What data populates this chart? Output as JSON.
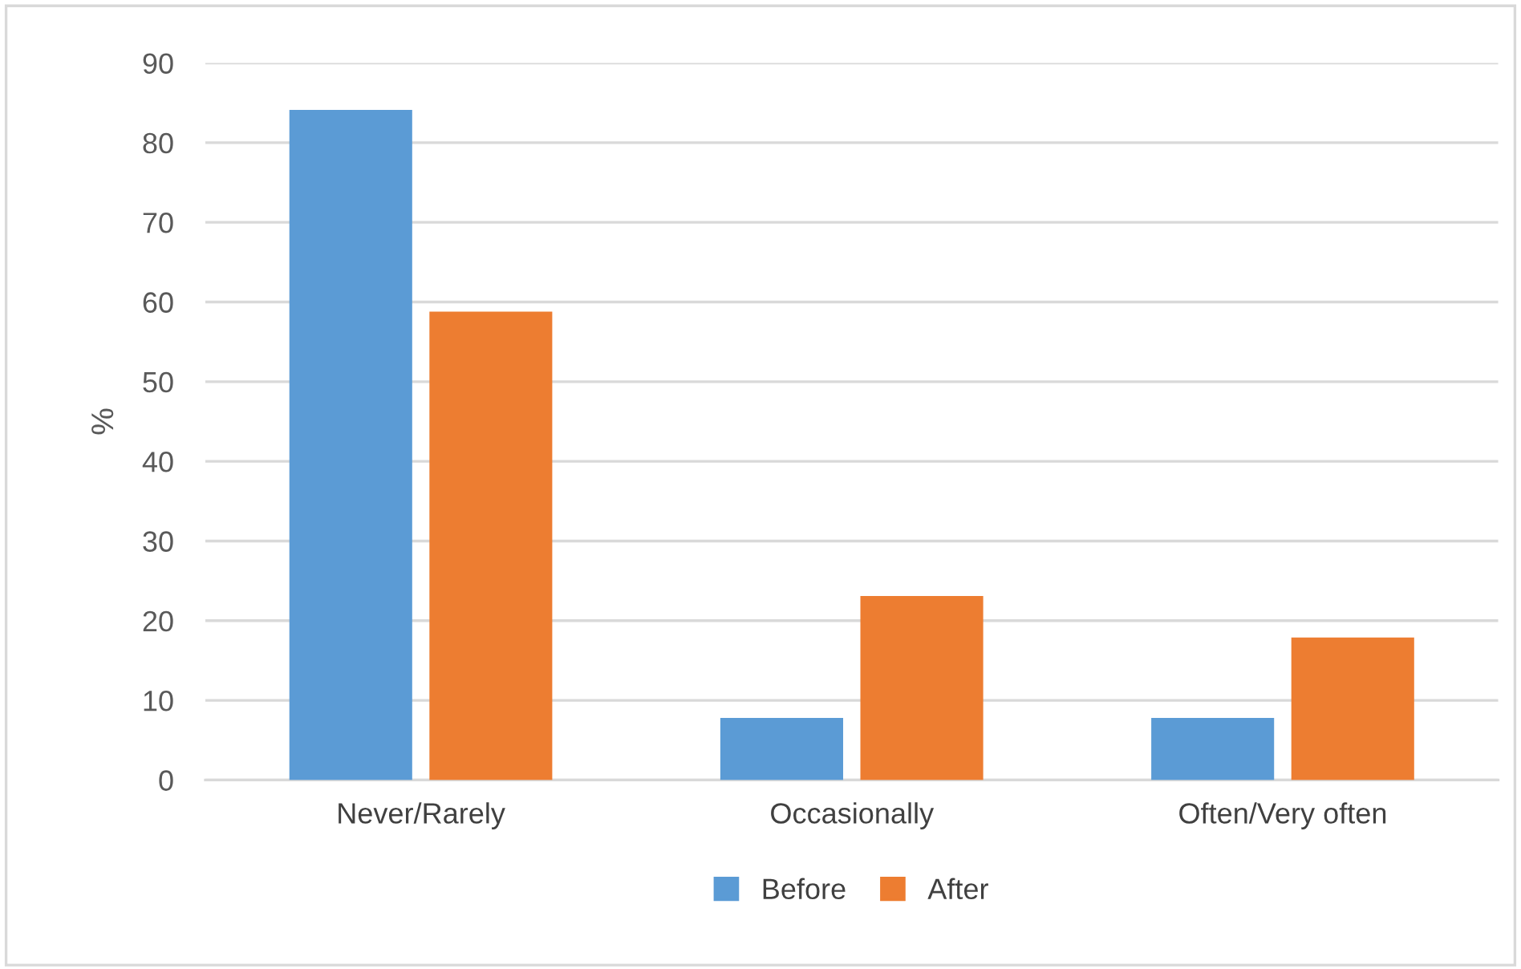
{
  "chart_data": {
    "type": "bar",
    "ylabel": "%",
    "categories": [
      "Never/Rarely",
      "Occasionally",
      "Often/Very often"
    ],
    "series": [
      {
        "name": "Before",
        "color": "#5b9bd5",
        "values": [
          84.1,
          7.8,
          7.8
        ]
      },
      {
        "name": "After",
        "color": "#ed7d31",
        "values": [
          58.8,
          23.1,
          17.9
        ]
      }
    ],
    "ylim": [
      0,
      90
    ],
    "yticks": [
      0,
      10,
      20,
      30,
      40,
      50,
      60,
      70,
      80,
      90
    ],
    "grid": "y",
    "legend": "bottom"
  }
}
